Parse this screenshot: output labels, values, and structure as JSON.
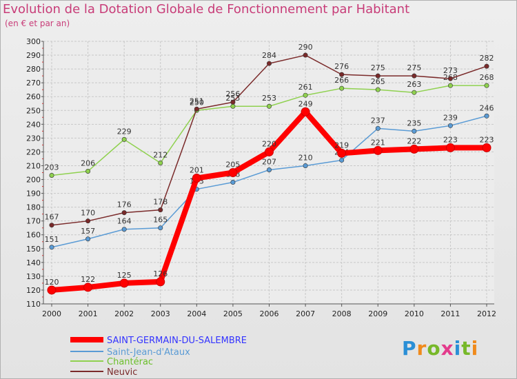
{
  "title": "Evolution de la Dotation Globale de Fonctionnement par Habitant",
  "subtitle": "(en € et par an)",
  "logo": {
    "text": "Proxiti",
    "colors": [
      "#2a8fd6",
      "#f08a1c",
      "#77b829",
      "#e33b8c",
      "#2a8fd6",
      "#77b829",
      "#f08a1c"
    ]
  },
  "chart_data": {
    "type": "line",
    "title": "Evolution de la Dotation Globale de Fonctionnement par Habitant",
    "ylabel": "(en € et par an)",
    "x": [
      2000,
      2001,
      2002,
      2003,
      2004,
      2005,
      2006,
      2007,
      2008,
      2009,
      2010,
      2011,
      2012
    ],
    "ylim": [
      110,
      300
    ],
    "yticks": [
      110,
      120,
      130,
      140,
      150,
      160,
      170,
      180,
      190,
      200,
      210,
      220,
      230,
      240,
      250,
      260,
      270,
      280,
      290,
      300
    ],
    "grid": true,
    "legend": "bottom-left",
    "series": [
      {
        "name": "SAINT-GERMAIN-DU-SALEMBRE",
        "color": "#ff0000",
        "legend_color": "#3333ff",
        "values": [
          120,
          122,
          125,
          126,
          201,
          205,
          220,
          249,
          219,
          221,
          222,
          223,
          223
        ]
      },
      {
        "name": "Saint-Jean-d'Ataux",
        "color": "#5a9bd5",
        "legend_color": "#5a9bd5",
        "values": [
          151,
          157,
          164,
          165,
          193,
          198,
          207,
          210,
          214,
          237,
          235,
          239,
          246
        ]
      },
      {
        "name": "Chantérac",
        "color": "#8fd14f",
        "legend_color": "#6bbf2a",
        "values": [
          203,
          206,
          229,
          212,
          250,
          253,
          253,
          261,
          266,
          265,
          263,
          268,
          268
        ]
      },
      {
        "name": "Neuvic",
        "color": "#7a2a2a",
        "legend_color": "#7a2a2a",
        "values": [
          167,
          170,
          176,
          178,
          251,
          256,
          284,
          290,
          276,
          275,
          275,
          273,
          282
        ]
      }
    ]
  }
}
